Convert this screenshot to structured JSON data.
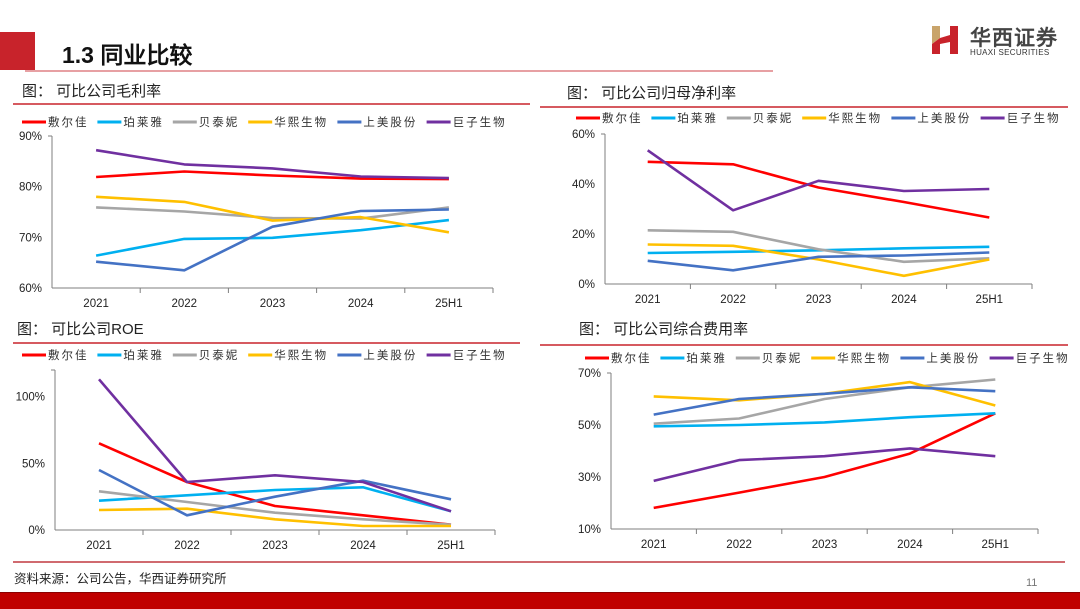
{
  "header": {
    "title": "1.3 同业比较",
    "logo_cn": "华西证券",
    "logo_en": "HUAXI SECURITIES"
  },
  "footer": {
    "source": "资料来源：公司公告，华西证券研究所",
    "page_number": "11"
  },
  "colors": {
    "brand_red": "#c8232b",
    "series": [
      "#ff0000",
      "#00b0f0",
      "#a6a6a6",
      "#ffc000",
      "#4472c4",
      "#7030a0"
    ]
  },
  "legend": [
    "敷尔佳",
    "珀莱雅",
    "贝泰妮",
    "华熙生物",
    "上美股份",
    "巨子生物"
  ],
  "chart_data": [
    {
      "type": "line",
      "title": "图：  可比公司毛利率",
      "categories": [
        "2021",
        "2022",
        "2023",
        "2024",
        "25H1"
      ],
      "ylim": [
        60,
        90
      ],
      "yticks": [
        60,
        70,
        80,
        90
      ],
      "ytick_labels": [
        "60%",
        "70%",
        "80%",
        "90%"
      ],
      "xlabel": "",
      "ylabel": "",
      "grid": false,
      "legend_position": "top",
      "series": [
        {
          "name": "敷尔佳",
          "values": [
            81.9,
            83.0,
            82.2,
            81.6,
            81.5
          ]
        },
        {
          "name": "珀莱雅",
          "values": [
            66.4,
            69.7,
            69.9,
            71.4,
            73.4
          ]
        },
        {
          "name": "贝泰妮",
          "values": [
            75.9,
            75.1,
            73.8,
            73.7,
            75.9
          ]
        },
        {
          "name": "华熙生物",
          "values": [
            78.0,
            77.0,
            73.3,
            74.0,
            71.0
          ]
        },
        {
          "name": "上美股份",
          "values": [
            65.2,
            63.5,
            72.1,
            75.2,
            75.5
          ]
        },
        {
          "name": "巨子生物",
          "values": [
            87.2,
            84.4,
            83.6,
            82.0,
            81.7
          ]
        }
      ]
    },
    {
      "type": "line",
      "title": "图：  可比公司归母净利率",
      "categories": [
        "2021",
        "2022",
        "2023",
        "2024",
        "25H1"
      ],
      "ylim": [
        0,
        60
      ],
      "yticks": [
        0,
        20,
        40,
        60
      ],
      "ytick_labels": [
        "0%",
        "20%",
        "40%",
        "60%"
      ],
      "xlabel": "",
      "ylabel": "",
      "grid": false,
      "legend_position": "top",
      "series": [
        {
          "name": "敷尔佳",
          "values": [
            48.9,
            47.9,
            38.6,
            32.8,
            26.6
          ]
        },
        {
          "name": "珀莱雅",
          "values": [
            12.4,
            12.9,
            13.5,
            14.3,
            14.9
          ]
        },
        {
          "name": "贝泰妮",
          "values": [
            21.5,
            20.9,
            13.9,
            8.9,
            10.3
          ]
        },
        {
          "name": "华熙生物",
          "values": [
            15.8,
            15.3,
            9.8,
            3.3,
            9.8
          ]
        },
        {
          "name": "上美股份",
          "values": [
            9.3,
            5.5,
            10.9,
            11.4,
            12.6
          ]
        },
        {
          "name": "巨子生物",
          "values": [
            53.5,
            29.5,
            41.3,
            37.2,
            38.0
          ]
        }
      ]
    },
    {
      "type": "line",
      "title": "图：  可比公司ROE",
      "categories": [
        "2021",
        "2022",
        "2023",
        "2024",
        "25H1"
      ],
      "ylim": [
        0,
        120
      ],
      "yticks": [
        0,
        50,
        100
      ],
      "ytick_labels": [
        "0%",
        "50%",
        "100%"
      ],
      "xlabel": "",
      "ylabel": "",
      "grid": false,
      "legend_position": "top",
      "series": [
        {
          "name": "敷尔佳",
          "values": [
            65,
            36,
            18,
            11,
            4
          ]
        },
        {
          "name": "珀莱雅",
          "values": [
            22,
            26,
            30,
            32,
            14
          ]
        },
        {
          "name": "贝泰妮",
          "values": [
            29,
            21,
            13,
            8,
            4
          ]
        },
        {
          "name": "华熙生物",
          "values": [
            15,
            16,
            8,
            3,
            3
          ]
        },
        {
          "name": "上美股份",
          "values": [
            45,
            11,
            25,
            37,
            23
          ]
        },
        {
          "name": "巨子生物",
          "values": [
            113,
            36,
            41,
            36,
            14
          ]
        }
      ]
    },
    {
      "type": "line",
      "title": "图：  可比公司综合费用率",
      "categories": [
        "2021",
        "2022",
        "2023",
        "2024",
        "25H1"
      ],
      "ylim": [
        10,
        70
      ],
      "yticks": [
        10,
        30,
        50,
        70
      ],
      "ytick_labels": [
        "10%",
        "30%",
        "50%",
        "70%"
      ],
      "xlabel": "",
      "ylabel": "",
      "grid": false,
      "legend_position": "top",
      "series": [
        {
          "name": "敷尔佳",
          "values": [
            18.1,
            24.0,
            30.0,
            39.0,
            54.5
          ]
        },
        {
          "name": "珀莱雅",
          "values": [
            49.5,
            50.0,
            51.0,
            53.0,
            54.5
          ]
        },
        {
          "name": "贝泰妮",
          "values": [
            50.5,
            52.5,
            60.0,
            64.5,
            67.5
          ]
        },
        {
          "name": "华熙生物",
          "values": [
            61.0,
            59.5,
            62.0,
            66.5,
            57.5
          ]
        },
        {
          "name": "上美股份",
          "values": [
            54.0,
            60.0,
            62.0,
            64.5,
            63.0
          ]
        },
        {
          "name": "巨子生物",
          "values": [
            28.5,
            36.5,
            38.0,
            41.0,
            38.0
          ]
        }
      ]
    }
  ]
}
